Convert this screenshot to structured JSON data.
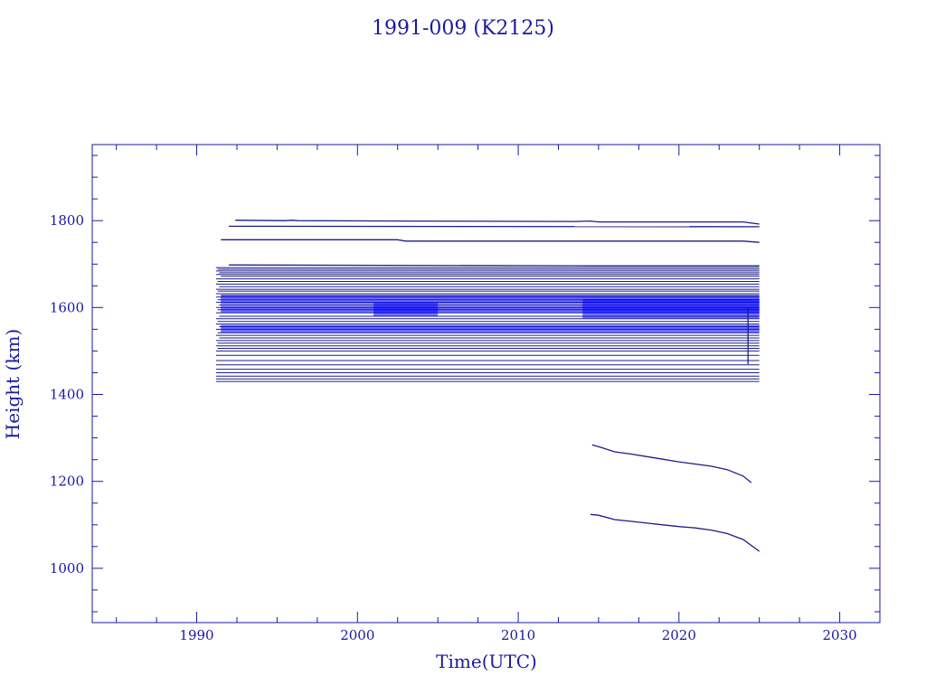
{
  "chart_data": {
    "type": "line",
    "title": "1991-009 (K2125)",
    "xlabel": "Time(UTC)",
    "ylabel": "Height (km)",
    "xlim": [
      1983.5,
      2032.5
    ],
    "ylim": [
      875,
      1975
    ],
    "x_ticks": [
      1990,
      2000,
      2010,
      2020,
      2030
    ],
    "y_ticks": [
      1000,
      1200,
      1400,
      1600,
      1800
    ],
    "x_tick_labels": [
      "1990",
      "2000",
      "2010",
      "2020",
      "2030"
    ],
    "y_tick_labels": [
      "1000",
      "1200",
      "1400",
      "1600",
      "1800"
    ],
    "x_minor_step": 2.5,
    "y_minor_step": 50,
    "grid": false,
    "legend": "none",
    "colors": {
      "text": "#1a1aa0",
      "frame": "#1a1aa0",
      "series": "#0000ff",
      "series_dark": "#1c1c8a"
    },
    "band_series": {
      "x_start": [
        1991.2,
        1991.3,
        1991.2,
        1991.4,
        1991.2,
        1991.5,
        1991.2,
        1991.3,
        1991.2,
        1991.4,
        1991.2,
        1991.3,
        1991.2,
        1991.5,
        1991.2,
        1991.3,
        1991.2,
        1991.4,
        1991.2,
        1991.3,
        1991.2,
        1991.4,
        1991.2,
        1991.3,
        1991.2,
        1991.4,
        1991.2,
        1991.3,
        1991.2,
        1991.4,
        1991.2,
        1991.3,
        1991.2,
        1991.3,
        1991.2,
        1991.2,
        1991.2,
        1991.2,
        1991.2,
        1991.2,
        1991.2,
        1991.2,
        1991.2
      ],
      "x_end": 2025.0,
      "heights": [
        1692,
        1688,
        1684,
        1680,
        1676,
        1672,
        1666,
        1660,
        1654,
        1648,
        1642,
        1638,
        1632,
        1628,
        1624,
        1618,
        1612,
        1606,
        1600,
        1595,
        1588,
        1580,
        1574,
        1568,
        1562,
        1556,
        1550,
        1542,
        1536,
        1530,
        1524,
        1518,
        1512,
        1506,
        1500,
        1490,
        1478,
        1468,
        1458,
        1450,
        1442,
        1436,
        1430
      ],
      "thick_blocks": [
        {
          "x": [
            1991.5,
            2025.0
          ],
          "y": [
            1608,
            1628
          ]
        },
        {
          "x": [
            1991.5,
            2025.0
          ],
          "y": [
            1588,
            1604
          ]
        },
        {
          "x": [
            1991.5,
            2025.0
          ],
          "y": [
            1542,
            1560
          ]
        },
        {
          "x": [
            2001.0,
            2005.0
          ],
          "y": [
            1580,
            1612
          ]
        },
        {
          "x": [
            2014.0,
            2025.0
          ],
          "y": [
            1575,
            1620
          ]
        }
      ]
    },
    "series": [
      {
        "x": [
          1992.4,
          1995.5,
          1995.9,
          1996.3,
          2003.0,
          2013.5,
          2014.5,
          2015.0,
          2024.0,
          2025.0
        ],
        "y": [
          1801,
          1800,
          1801,
          1800,
          1799,
          1798,
          1799,
          1797,
          1797,
          1792
        ]
      },
      {
        "x": [
          1992.0,
          2025.0
        ],
        "y": [
          1787,
          1786
        ]
      },
      {
        "x": [
          1991.5,
          2002.5,
          2003.0,
          2024.0,
          2025.0
        ],
        "y": [
          1756,
          1756,
          1753,
          1753,
          1750
        ]
      },
      {
        "x": [
          1992.0,
          2014.5,
          2025.0
        ],
        "y": [
          1698,
          1696,
          1696
        ]
      },
      {
        "x": [
          2014.6,
          2015.0,
          2016.0,
          2017.0,
          2018.0,
          2019.0,
          2020.0,
          2021.0,
          2022.0,
          2023.0,
          2024.0,
          2024.5
        ],
        "y": [
          1284,
          1280,
          1268,
          1263,
          1257,
          1251,
          1245,
          1240,
          1235,
          1227,
          1212,
          1197
        ]
      },
      {
        "x": [
          2014.5,
          2015.0,
          2016.0,
          2017.0,
          2018.0,
          2019.0,
          2020.0,
          2021.0,
          2022.0,
          2023.0,
          2024.0,
          2025.0
        ],
        "y": [
          1124,
          1122,
          1112,
          1108,
          1104,
          1100,
          1096,
          1093,
          1088,
          1080,
          1066,
          1039
        ]
      },
      {
        "x": [
          2024.3,
          2024.3
        ],
        "y": [
          1470,
          1600
        ]
      }
    ]
  }
}
